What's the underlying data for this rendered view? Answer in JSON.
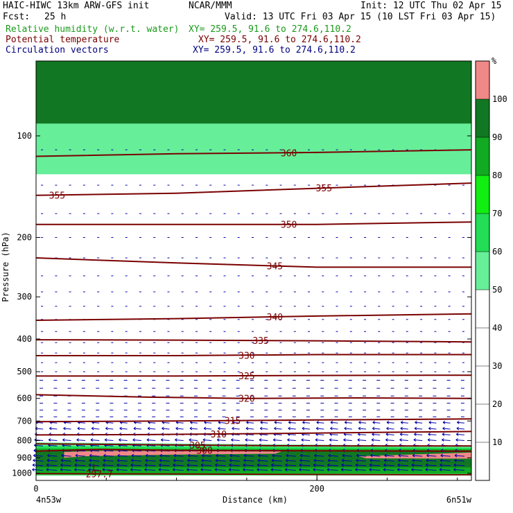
{
  "header": {
    "title": "HAIC-HIWC 13km ARW-GFS init",
    "center": "NCAR/MMM",
    "init": "Init: 12 UTC Thu 02 Apr 15",
    "fcst_label": "Fcst:",
    "fcst_value": "25 h",
    "valid": "Valid: 13 UTC Fri 03 Apr 15 (10 LST Fri 03 Apr 15)"
  },
  "fields": [
    {
      "name": "Relative humidity (w.r.t. water)",
      "xy": "XY= 259.5, 91.6 to 274.6,110.2",
      "color": "#1a9a1a"
    },
    {
      "name": "Potential temperature",
      "xy": "XY= 259.5, 91.6 to 274.6,110.2",
      "color": "#7a0000"
    },
    {
      "name": "Circulation vectors",
      "xy": "XY= 259.5, 91.6 to 274.6,110.2",
      "color": "#000080"
    }
  ],
  "chart_data": {
    "type": "heatmap",
    "xlabel": "Distance (km)",
    "ylabel": "Pressure (hPa)",
    "x_ticks": [
      "0",
      "200"
    ],
    "x_end_labels": {
      "left": "4n53w",
      "right": "6n51w"
    },
    "xlim": [
      0,
      310
    ],
    "ylim": [
      1050,
      60
    ],
    "y_ticks": [
      100,
      200,
      300,
      400,
      500,
      600,
      700,
      800,
      900,
      1000
    ],
    "colorbar": {
      "unit": "%",
      "ticks": [
        10,
        20,
        30,
        40,
        50,
        60,
        70,
        80,
        90,
        100
      ],
      "bands": [
        {
          "from": 0,
          "to": 50,
          "color": "#ffffff"
        },
        {
          "from": 50,
          "to": 60,
          "color": "#66ee99"
        },
        {
          "from": 60,
          "to": 70,
          "color": "#22dd55"
        },
        {
          "from": 70,
          "to": 80,
          "color": "#11ee11"
        },
        {
          "from": 80,
          "to": 90,
          "color": "#11aa22"
        },
        {
          "from": 90,
          "to": 100,
          "color": "#117722"
        },
        {
          "from": 100,
          "to": 110,
          "color": "#f08888"
        }
      ]
    },
    "theta_contours": [
      {
        "label": "297.7",
        "label_x": 45,
        "points": [
          [
            0,
            1003
          ],
          [
            100,
            1005
          ],
          [
            200,
            1008
          ],
          [
            310,
            1010
          ]
        ]
      },
      {
        "label": "300",
        "label_x": 120,
        "points": [
          [
            0,
            860
          ],
          [
            45,
            850
          ],
          [
            100,
            855
          ],
          [
            200,
            858
          ],
          [
            310,
            860
          ]
        ]
      },
      {
        "label": "305",
        "label_x": 115,
        "points": [
          [
            0,
            818
          ],
          [
            80,
            823
          ],
          [
            160,
            828
          ],
          [
            240,
            830
          ],
          [
            310,
            830
          ]
        ]
      },
      {
        "label": "310",
        "label_x": 130,
        "points": [
          [
            0,
            770
          ],
          [
            80,
            768
          ],
          [
            160,
            763
          ],
          [
            240,
            757
          ],
          [
            310,
            752
          ]
        ]
      },
      {
        "label": "315",
        "label_x": 140,
        "points": [
          [
            0,
            703
          ],
          [
            100,
            700
          ],
          [
            200,
            695
          ],
          [
            310,
            690
          ]
        ]
      },
      {
        "label": "320",
        "label_x": 150,
        "points": [
          [
            0,
            585
          ],
          [
            80,
            595
          ],
          [
            150,
            600
          ],
          [
            230,
            598
          ],
          [
            310,
            600
          ]
        ]
      },
      {
        "label": "325",
        "label_x": 150,
        "points": [
          [
            0,
            515
          ],
          [
            100,
            515
          ],
          [
            200,
            513
          ],
          [
            310,
            512
          ]
        ]
      },
      {
        "label": "330",
        "label_x": 150,
        "points": [
          [
            0,
            448
          ],
          [
            100,
            448
          ],
          [
            200,
            445
          ],
          [
            310,
            445
          ]
        ]
      },
      {
        "label": "335",
        "label_x": 160,
        "points": [
          [
            0,
            402
          ],
          [
            100,
            403
          ],
          [
            200,
            405
          ],
          [
            310,
            408
          ]
        ]
      },
      {
        "label": "340",
        "label_x": 170,
        "points": [
          [
            0,
            352
          ],
          [
            100,
            348
          ],
          [
            200,
            342
          ],
          [
            310,
            337
          ]
        ]
      },
      {
        "label": "345",
        "label_x": 170,
        "points": [
          [
            0,
            230
          ],
          [
            100,
            238
          ],
          [
            200,
            245
          ],
          [
            310,
            245
          ]
        ]
      },
      {
        "label": "350",
        "label_x": 180,
        "points": [
          [
            0,
            183
          ],
          [
            100,
            183
          ],
          [
            200,
            183
          ],
          [
            310,
            180
          ]
        ]
      },
      {
        "label": "355",
        "label_x": 15,
        "points": [
          [
            0,
            150
          ],
          [
            100,
            148
          ],
          [
            200,
            143
          ],
          [
            310,
            138
          ]
        ]
      },
      {
        "label": "355",
        "label_x": 205,
        "points": []
      },
      {
        "label": "360",
        "label_x": 180,
        "points": [
          [
            0,
            115
          ],
          [
            100,
            113
          ],
          [
            200,
            112
          ],
          [
            310,
            110
          ]
        ]
      }
    ],
    "rh_regions": [
      {
        "rh_band": "90-100",
        "outline": [
          [
            0,
            60
          ],
          [
            310,
            60
          ],
          [
            310,
            92
          ],
          [
            0,
            92
          ]
        ]
      },
      {
        "rh_band": "50-60",
        "outline": [
          [
            0,
            92
          ],
          [
            310,
            92
          ],
          [
            310,
            130
          ],
          [
            0,
            130
          ]
        ]
      },
      {
        "rh_band": "50-60",
        "outline": [
          [
            0,
            810
          ],
          [
            310,
            830
          ],
          [
            310,
            1015
          ],
          [
            0,
            1015
          ]
        ]
      },
      {
        "rh_band": "60-70",
        "outline": [
          [
            0,
            830
          ],
          [
            310,
            840
          ],
          [
            310,
            1015
          ],
          [
            0,
            1015
          ]
        ]
      },
      {
        "rh_band": "80-90",
        "outline": [
          [
            0,
            845
          ],
          [
            310,
            848
          ],
          [
            310,
            1000
          ],
          [
            0,
            1000
          ]
        ]
      },
      {
        "rh_band": "90-100",
        "outline": [
          [
            0,
            855
          ],
          [
            310,
            858
          ],
          [
            310,
            960
          ],
          [
            0,
            960
          ]
        ]
      },
      {
        "rh_band": "100-110",
        "outline": [
          [
            20,
            865
          ],
          [
            45,
            858
          ],
          [
            175,
            862
          ],
          [
            170,
            875
          ],
          [
            100,
            880
          ],
          [
            35,
            890
          ],
          [
            20,
            900
          ]
        ]
      },
      {
        "rh_band": "100-110",
        "outline": [
          [
            230,
            890
          ],
          [
            310,
            868
          ],
          [
            310,
            905
          ],
          [
            235,
            903
          ]
        ]
      }
    ],
    "low_label": "L",
    "low_pos": [
      42,
      985
    ]
  }
}
